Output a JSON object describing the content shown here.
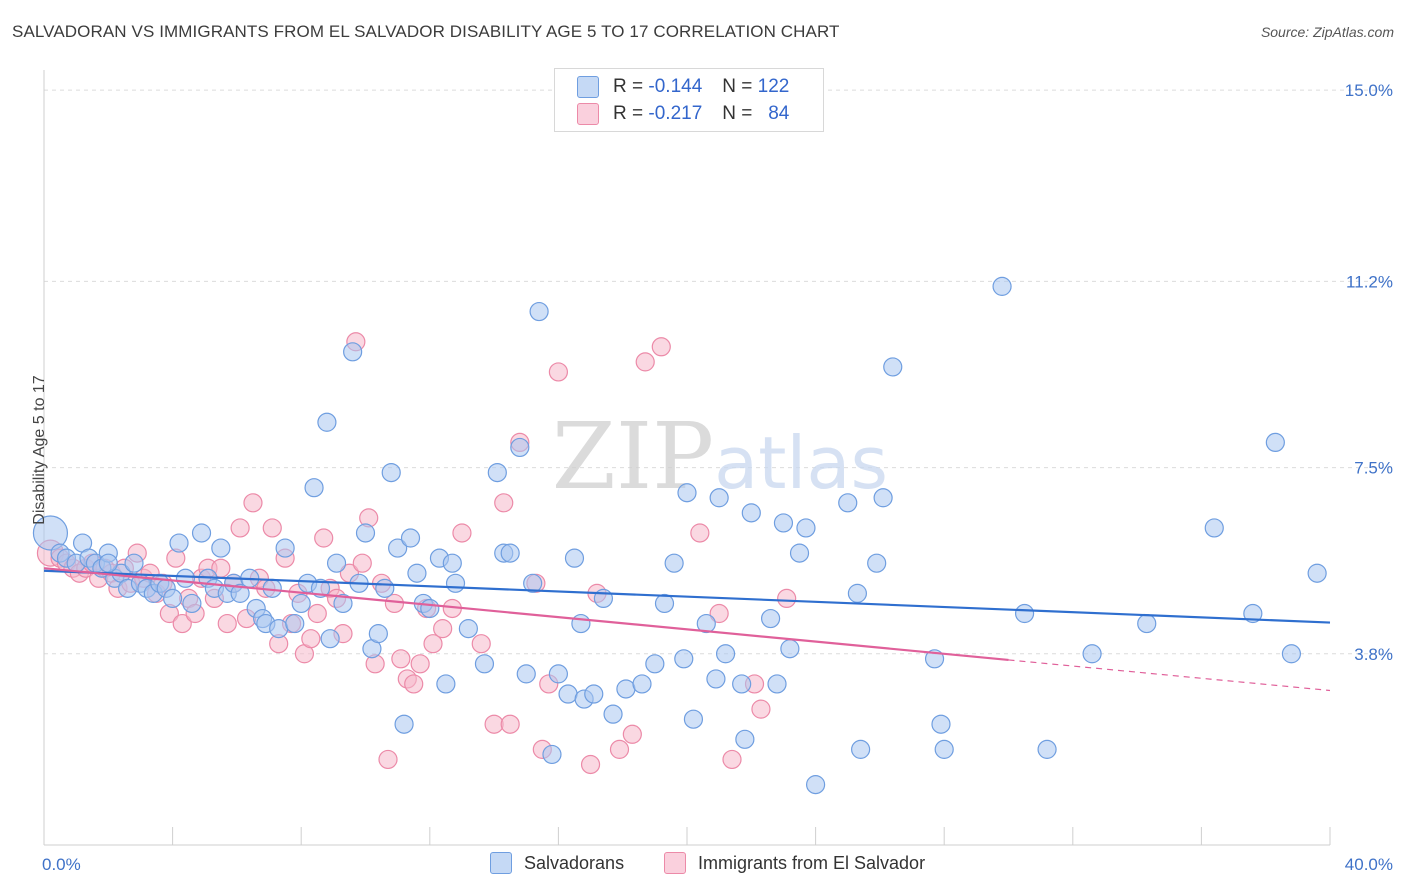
{
  "title": "SALVADORAN VS IMMIGRANTS FROM EL SALVADOR DISABILITY AGE 5 TO 17 CORRELATION CHART",
  "source": "Source: ZipAtlas.com",
  "watermark": "ZIPatlas",
  "legend_top": {
    "r_label": "R =",
    "n_label": "N =",
    "rows": [
      {
        "r": "-0.144",
        "n": "122",
        "color": "#a9c6f0"
      },
      {
        "r": "-0.217",
        "n": "84",
        "color": "#f6b8cb"
      }
    ]
  },
  "colors": {
    "blue_fill": "#a9c6f0",
    "blue_stroke": "#6f9ee0",
    "blue_line": "#2f6fcf",
    "pink_fill": "#f6b8cb",
    "pink_stroke": "#ec8aa8",
    "pink_line": "#e0609a",
    "tick_label": "#3f72c8",
    "grid": "#dcdcdc"
  },
  "chart_data": {
    "type": "scatter",
    "title": "SALVADORAN VS IMMIGRANTS FROM EL SALVADOR DISABILITY AGE 5 TO 17 CORRELATION CHART",
    "xlabel": "",
    "ylabel": "Disability Age 5 to 17",
    "xlim": [
      0,
      40
    ],
    "ylim": [
      0,
      15.4
    ],
    "x_ticks": [
      {
        "value": 0,
        "label": "0.0%"
      },
      {
        "value": 40,
        "label": "40.0%"
      }
    ],
    "y_ticks": [
      {
        "value": 3.8,
        "label": "3.8%"
      },
      {
        "value": 7.5,
        "label": "7.5%"
      },
      {
        "value": 11.2,
        "label": "11.2%"
      },
      {
        "value": 15.0,
        "label": "15.0%"
      }
    ],
    "legend_placement": "bottom",
    "series": [
      {
        "name": "Salvadorans",
        "r": -0.144,
        "n": 122,
        "trend": {
          "x": [
            0,
            40
          ],
          "y": [
            5.45,
            4.42
          ],
          "dashed_from": null
        },
        "points": [
          [
            0.2,
            6.2
          ],
          [
            0.5,
            5.8
          ],
          [
            0.7,
            5.7
          ],
          [
            1.0,
            5.6
          ],
          [
            1.2,
            6.0
          ],
          [
            1.4,
            5.7
          ],
          [
            1.6,
            5.6
          ],
          [
            1.8,
            5.5
          ],
          [
            2.0,
            5.8
          ],
          [
            2.2,
            5.3
          ],
          [
            2.4,
            5.4
          ],
          [
            2.6,
            5.1
          ],
          [
            2.8,
            5.6
          ],
          [
            3.0,
            5.2
          ],
          [
            3.2,
            5.1
          ],
          [
            3.4,
            5.0
          ],
          [
            3.6,
            5.2
          ],
          [
            3.8,
            5.1
          ],
          [
            4.0,
            4.9
          ],
          [
            4.2,
            6.0
          ],
          [
            4.4,
            5.3
          ],
          [
            4.6,
            4.8
          ],
          [
            4.9,
            6.2
          ],
          [
            5.1,
            5.3
          ],
          [
            5.3,
            5.1
          ],
          [
            5.5,
            5.9
          ],
          [
            5.7,
            5.0
          ],
          [
            5.9,
            5.2
          ],
          [
            6.1,
            5.0
          ],
          [
            6.4,
            5.3
          ],
          [
            6.6,
            4.7
          ],
          [
            6.8,
            4.5
          ],
          [
            6.9,
            4.4
          ],
          [
            7.1,
            5.1
          ],
          [
            7.3,
            4.3
          ],
          [
            7.5,
            5.9
          ],
          [
            7.8,
            4.4
          ],
          [
            8.0,
            4.8
          ],
          [
            8.2,
            5.2
          ],
          [
            8.4,
            7.1
          ],
          [
            8.6,
            5.1
          ],
          [
            8.8,
            8.4
          ],
          [
            8.9,
            4.1
          ],
          [
            9.1,
            5.6
          ],
          [
            9.3,
            4.8
          ],
          [
            9.6,
            9.8
          ],
          [
            9.8,
            5.2
          ],
          [
            10.0,
            6.2
          ],
          [
            10.2,
            3.9
          ],
          [
            10.4,
            4.2
          ],
          [
            10.6,
            5.1
          ],
          [
            10.8,
            7.4
          ],
          [
            11.0,
            5.9
          ],
          [
            11.2,
            2.4
          ],
          [
            11.4,
            6.1
          ],
          [
            11.6,
            5.4
          ],
          [
            11.8,
            4.8
          ],
          [
            12.0,
            4.7
          ],
          [
            12.3,
            5.7
          ],
          [
            12.5,
            3.2
          ],
          [
            12.7,
            5.6
          ],
          [
            12.8,
            5.2
          ],
          [
            13.2,
            4.3
          ],
          [
            13.7,
            3.6
          ],
          [
            14.1,
            7.4
          ],
          [
            14.3,
            5.8
          ],
          [
            14.5,
            5.8
          ],
          [
            14.8,
            7.9
          ],
          [
            15.0,
            3.4
          ],
          [
            15.2,
            5.2
          ],
          [
            15.4,
            10.6
          ],
          [
            15.8,
            1.8
          ],
          [
            16.0,
            3.4
          ],
          [
            16.3,
            3.0
          ],
          [
            16.5,
            5.7
          ],
          [
            16.7,
            4.4
          ],
          [
            16.8,
            2.9
          ],
          [
            17.1,
            3.0
          ],
          [
            17.4,
            4.9
          ],
          [
            17.7,
            2.6
          ],
          [
            18.1,
            3.1
          ],
          [
            18.6,
            3.2
          ],
          [
            19.0,
            3.6
          ],
          [
            19.3,
            4.8
          ],
          [
            19.6,
            5.6
          ],
          [
            19.9,
            3.7
          ],
          [
            20.0,
            7.0
          ],
          [
            20.2,
            2.5
          ],
          [
            20.6,
            4.4
          ],
          [
            20.9,
            3.3
          ],
          [
            21.0,
            6.9
          ],
          [
            21.2,
            3.8
          ],
          [
            21.7,
            3.2
          ],
          [
            21.8,
            2.1
          ],
          [
            22.0,
            6.6
          ],
          [
            22.6,
            4.5
          ],
          [
            22.8,
            3.2
          ],
          [
            23.0,
            6.4
          ],
          [
            23.2,
            3.9
          ],
          [
            23.5,
            5.8
          ],
          [
            23.7,
            6.3
          ],
          [
            24.0,
            1.2
          ],
          [
            25.0,
            6.8
          ],
          [
            25.3,
            5.0
          ],
          [
            25.4,
            1.9
          ],
          [
            25.9,
            5.6
          ],
          [
            26.1,
            6.9
          ],
          [
            26.4,
            9.5
          ],
          [
            27.7,
            3.7
          ],
          [
            27.9,
            2.4
          ],
          [
            28.0,
            1.9
          ],
          [
            29.8,
            11.1
          ],
          [
            30.5,
            4.6
          ],
          [
            31.2,
            1.9
          ],
          [
            32.6,
            3.8
          ],
          [
            34.3,
            4.4
          ],
          [
            36.4,
            6.3
          ],
          [
            37.6,
            4.6
          ],
          [
            38.3,
            8.0
          ],
          [
            38.8,
            3.8
          ],
          [
            39.6,
            5.4
          ],
          [
            2.0,
            5.6
          ]
        ]
      },
      {
        "name": "Immigrants from El Salvador",
        "r": -0.217,
        "n": 84,
        "trend": {
          "x": [
            0,
            40
          ],
          "y": [
            5.5,
            3.07
          ],
          "dashed_from": 30
        },
        "points": [
          [
            0.2,
            5.8
          ],
          [
            0.5,
            5.7
          ],
          [
            0.7,
            5.6
          ],
          [
            0.9,
            5.5
          ],
          [
            1.1,
            5.4
          ],
          [
            1.3,
            5.5
          ],
          [
            1.5,
            5.6
          ],
          [
            1.7,
            5.3
          ],
          [
            1.9,
            5.5
          ],
          [
            2.1,
            5.4
          ],
          [
            2.3,
            5.1
          ],
          [
            2.5,
            5.5
          ],
          [
            2.7,
            5.2
          ],
          [
            2.9,
            5.8
          ],
          [
            3.1,
            5.3
          ],
          [
            3.3,
            5.4
          ],
          [
            3.5,
            5.0
          ],
          [
            3.7,
            5.2
          ],
          [
            3.9,
            4.6
          ],
          [
            4.1,
            5.7
          ],
          [
            4.3,
            4.4
          ],
          [
            4.5,
            4.9
          ],
          [
            4.7,
            4.6
          ],
          [
            4.9,
            5.3
          ],
          [
            5.1,
            5.5
          ],
          [
            5.3,
            4.9
          ],
          [
            5.5,
            5.5
          ],
          [
            5.7,
            4.4
          ],
          [
            5.9,
            5.2
          ],
          [
            6.1,
            6.3
          ],
          [
            6.3,
            4.5
          ],
          [
            6.5,
            6.8
          ],
          [
            6.7,
            5.3
          ],
          [
            6.9,
            5.1
          ],
          [
            7.1,
            6.3
          ],
          [
            7.3,
            4.0
          ],
          [
            7.5,
            5.7
          ],
          [
            7.7,
            4.4
          ],
          [
            7.9,
            5.0
          ],
          [
            8.1,
            3.8
          ],
          [
            8.3,
            4.1
          ],
          [
            8.5,
            4.6
          ],
          [
            8.7,
            6.1
          ],
          [
            8.9,
            5.1
          ],
          [
            9.1,
            4.9
          ],
          [
            9.3,
            4.2
          ],
          [
            9.5,
            5.4
          ],
          [
            9.7,
            10.0
          ],
          [
            9.9,
            5.6
          ],
          [
            10.1,
            6.5
          ],
          [
            10.3,
            3.6
          ],
          [
            10.5,
            5.2
          ],
          [
            10.7,
            1.7
          ],
          [
            10.9,
            4.8
          ],
          [
            11.1,
            3.7
          ],
          [
            11.3,
            3.3
          ],
          [
            11.5,
            3.2
          ],
          [
            11.7,
            3.6
          ],
          [
            11.9,
            4.7
          ],
          [
            12.1,
            4.0
          ],
          [
            12.4,
            4.3
          ],
          [
            12.7,
            4.7
          ],
          [
            13.0,
            6.2
          ],
          [
            13.6,
            4.0
          ],
          [
            14.0,
            2.4
          ],
          [
            14.3,
            6.8
          ],
          [
            14.5,
            2.4
          ],
          [
            14.8,
            8.0
          ],
          [
            15.3,
            5.2
          ],
          [
            15.5,
            1.9
          ],
          [
            15.7,
            3.2
          ],
          [
            16.0,
            9.4
          ],
          [
            17.0,
            1.6
          ],
          [
            17.2,
            5.0
          ],
          [
            17.9,
            1.9
          ],
          [
            18.3,
            2.2
          ],
          [
            18.7,
            9.6
          ],
          [
            19.2,
            9.9
          ],
          [
            20.4,
            6.2
          ],
          [
            21.0,
            4.6
          ],
          [
            21.4,
            1.7
          ],
          [
            22.1,
            3.2
          ],
          [
            22.3,
            2.7
          ],
          [
            23.1,
            4.9
          ]
        ]
      }
    ]
  },
  "legend_bottom": [
    {
      "label": "Salvadorans",
      "color": "#a9c6f0"
    },
    {
      "label": "Immigrants from El Salvador",
      "color": "#f6b8cb"
    }
  ]
}
